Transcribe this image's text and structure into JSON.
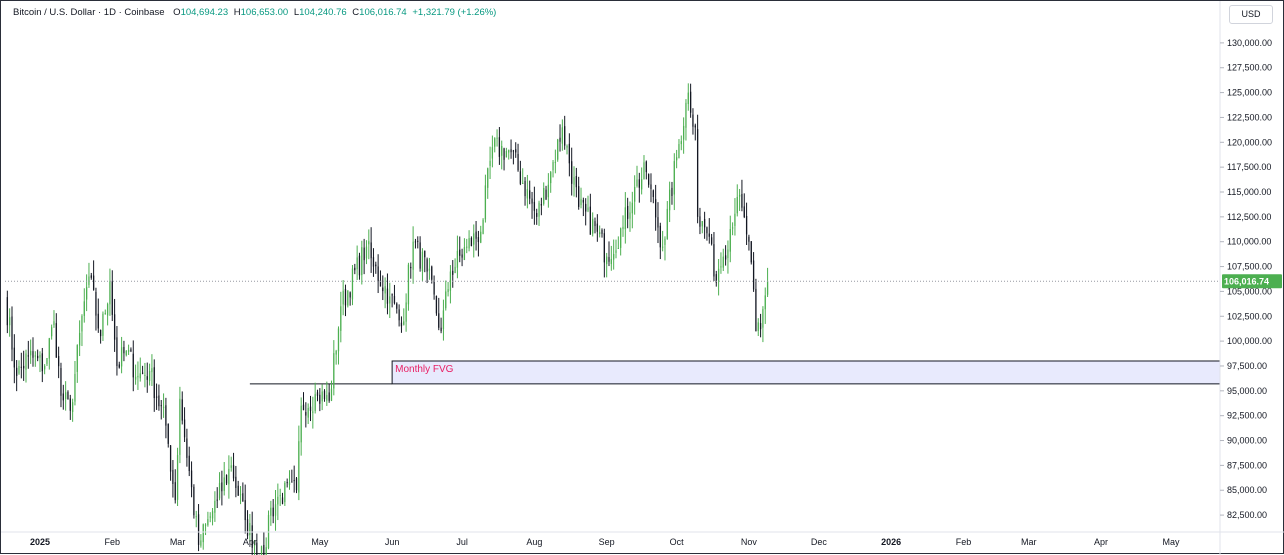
{
  "header": {
    "symbol": "Bitcoin / U.S. Dollar · 1D · Coinbase",
    "open_key": "O",
    "open": "104,694.23",
    "high_key": "H",
    "high": "106,653.00",
    "low_key": "L",
    "low": "104,240.76",
    "close_key": "C",
    "close": "106,016.74",
    "change": "+1,321.79 (+1.26%)"
  },
  "currency": "USD",
  "colors": {
    "up": "#4caf50",
    "down": "#131722",
    "fvg_fill": "#e8eafd",
    "fvg_border": "#131722",
    "fvg_text": "#e91e63",
    "price_badge": "#4caf50",
    "grid_dotted": "#9598a1"
  },
  "chart_data": {
    "type": "candlestick",
    "title": "Bitcoin / U.S. Dollar · 1D · Coinbase",
    "ylim": [
      81000,
      132000
    ],
    "y_ticks": [
      "130,000.00",
      "127,500.00",
      "125,000.00",
      "122,500.00",
      "120,000.00",
      "117,500.00",
      "115,000.00",
      "112,500.00",
      "110,000.00",
      "107,500.00",
      "105,000.00",
      "102,500.00",
      "100,000.00",
      "97,500.00",
      "95,000.00",
      "92,500.00",
      "90,000.00",
      "87,500.00",
      "85,000.00",
      "82,500.00"
    ],
    "y_tick_values": [
      130000,
      127500,
      125000,
      122500,
      120000,
      117500,
      115000,
      112500,
      110000,
      107500,
      105000,
      102500,
      100000,
      97500,
      95000,
      92500,
      90000,
      87500,
      85000,
      82500
    ],
    "x_labels": [
      {
        "label": "2025",
        "date": "2025-01-01",
        "bold": true
      },
      {
        "label": "Feb",
        "date": "2025-02-01"
      },
      {
        "label": "Mar",
        "date": "2025-03-01"
      },
      {
        "label": "Apr",
        "date": "2025-04-01"
      },
      {
        "label": "May",
        "date": "2025-05-01"
      },
      {
        "label": "Jun",
        "date": "2025-06-01"
      },
      {
        "label": "Jul",
        "date": "2025-07-01"
      },
      {
        "label": "Aug",
        "date": "2025-08-01"
      },
      {
        "label": "Sep",
        "date": "2025-09-01"
      },
      {
        "label": "Oct",
        "date": "2025-10-01"
      },
      {
        "label": "Nov",
        "date": "2025-11-01"
      },
      {
        "label": "Dec",
        "date": "2025-12-01"
      },
      {
        "label": "2026",
        "date": "2026-01-01",
        "bold": true
      },
      {
        "label": "Feb",
        "date": "2026-02-01"
      },
      {
        "label": "Mar",
        "date": "2026-03-01"
      },
      {
        "label": "Apr",
        "date": "2026-04-01"
      },
      {
        "label": "May",
        "date": "2026-05-01"
      }
    ],
    "x_range": [
      "2024-12-17",
      "2026-05-22"
    ],
    "anchors": [
      [
        "2024-12-17",
        104500
      ],
      [
        "2024-12-22",
        96500
      ],
      [
        "2024-12-27",
        98500
      ],
      [
        "2025-01-03",
        97500
      ],
      [
        "2025-01-07",
        102000
      ],
      [
        "2025-01-10",
        94500
      ],
      [
        "2025-01-14",
        93000
      ],
      [
        "2025-01-20",
        104000
      ],
      [
        "2025-01-22",
        106500
      ],
      [
        "2025-01-27",
        100500
      ],
      [
        "2025-01-31",
        106000
      ],
      [
        "2025-02-03",
        97500
      ],
      [
        "2025-02-07",
        99000
      ],
      [
        "2025-02-12",
        96500
      ],
      [
        "2025-02-17",
        97000
      ],
      [
        "2025-02-24",
        91500
      ],
      [
        "2025-02-28",
        84000
      ],
      [
        "2025-03-02",
        94200
      ],
      [
        "2025-03-10",
        79500
      ],
      [
        "2025-03-18",
        84000
      ],
      [
        "2025-03-24",
        87500
      ],
      [
        "2025-03-30",
        82000
      ],
      [
        "2025-04-07",
        77500
      ],
      [
        "2025-04-09",
        82500
      ],
      [
        "2025-04-14",
        84500
      ],
      [
        "2025-04-21",
        85000
      ],
      [
        "2025-04-23",
        93500
      ],
      [
        "2025-04-30",
        94500
      ],
      [
        "2025-05-05",
        94000
      ],
      [
        "2025-05-10",
        103500
      ],
      [
        "2025-05-21",
        109500
      ],
      [
        "2025-05-24",
        107500
      ],
      [
        "2025-05-31",
        104500
      ],
      [
        "2025-06-05",
        101500
      ],
      [
        "2025-06-10",
        110000
      ],
      [
        "2025-06-16",
        107000
      ],
      [
        "2025-06-22",
        101000
      ],
      [
        "2025-06-26",
        107000
      ],
      [
        "2025-07-03",
        109500
      ],
      [
        "2025-07-09",
        111000
      ],
      [
        "2025-07-14",
        119500
      ],
      [
        "2025-07-22",
        119000
      ],
      [
        "2025-08-02",
        112500
      ],
      [
        "2025-08-08",
        117000
      ],
      [
        "2025-08-13",
        121500
      ],
      [
        "2025-08-20",
        113500
      ],
      [
        "2025-08-28",
        111000
      ],
      [
        "2025-09-01",
        108500
      ],
      [
        "2025-09-08",
        111500
      ],
      [
        "2025-09-13",
        115500
      ],
      [
        "2025-09-18",
        117000
      ],
      [
        "2025-09-25",
        109500
      ],
      [
        "2025-10-01",
        118500
      ],
      [
        "2025-10-06",
        125000
      ],
      [
        "2025-10-09",
        121500
      ],
      [
        "2025-10-10",
        112500
      ],
      [
        "2025-10-15",
        110500
      ],
      [
        "2025-10-17",
        106500
      ],
      [
        "2025-10-21",
        108500
      ],
      [
        "2025-10-27",
        114500
      ],
      [
        "2025-11-01",
        110000
      ],
      [
        "2025-11-04",
        101000
      ],
      [
        "2025-11-06",
        101200
      ],
      [
        "2025-11-09",
        106016.74
      ]
    ],
    "last_price": 106016.74,
    "last_price_label": "106,016.74",
    "fvg_zone": {
      "label": "Monthly FVG",
      "start_date": "2025-06-01",
      "end_date": "2026-05-22",
      "top": 98000,
      "bottom": 95700
    },
    "horizontal_line": {
      "price": 95700,
      "start_date": "2025-04-01",
      "end_date": "2025-06-01"
    }
  }
}
